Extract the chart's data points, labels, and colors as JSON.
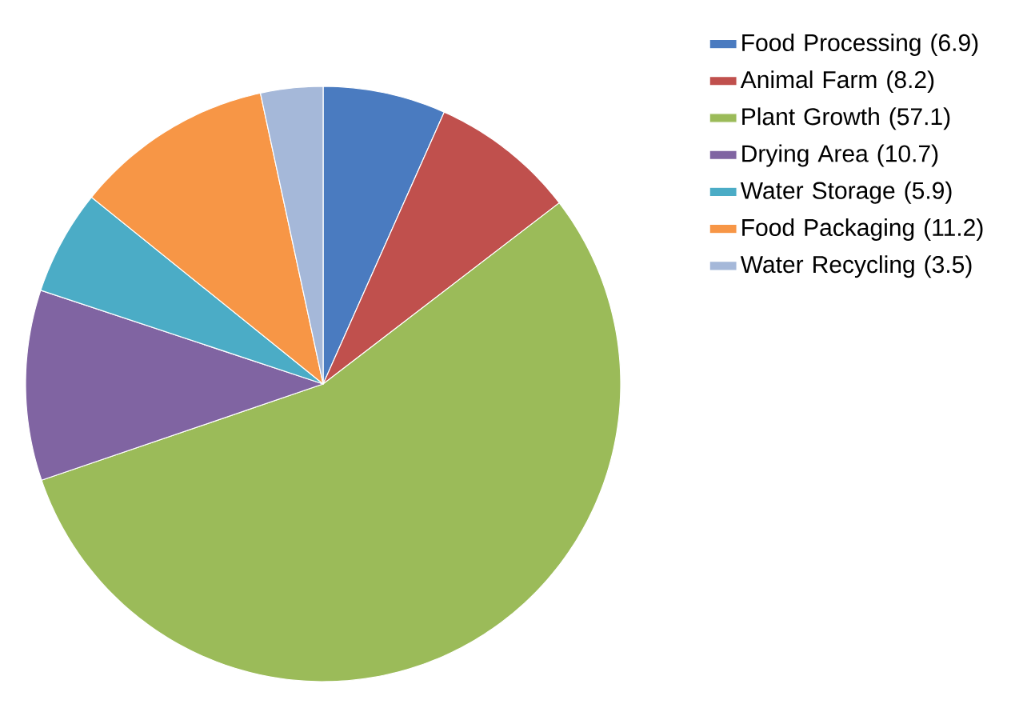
{
  "chart_data": {
    "type": "pie",
    "categories": [
      "Food Processing (6.9)",
      "Animal Farm (8.2)",
      "Plant Growth (57.1)",
      "Drying Area (10.7)",
      "Water Storage (5.9)",
      "Food Packaging (11.2)",
      "Water Recycling (3.5)"
    ],
    "values": [
      6.9,
      8.2,
      57.1,
      10.7,
      5.9,
      11.2,
      3.5
    ],
    "colors": [
      "#4a7bc0",
      "#c0504d",
      "#9bbb59",
      "#8064a2",
      "#4bacc6",
      "#f79646",
      "#a5b8d9"
    ],
    "legend": "right"
  }
}
